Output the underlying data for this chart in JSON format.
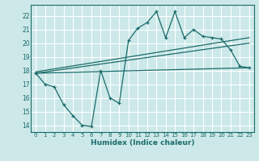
{
  "xlabel": "Humidex (Indice chaleur)",
  "bg_color": "#cce8e8",
  "line_color": "#1a6b6b",
  "grid_color": "#ffffff",
  "x_ticks": [
    0,
    1,
    2,
    3,
    4,
    5,
    6,
    7,
    8,
    9,
    10,
    11,
    12,
    13,
    14,
    15,
    16,
    17,
    18,
    19,
    20,
    21,
    22,
    23
  ],
  "y_ticks": [
    14,
    15,
    16,
    17,
    18,
    19,
    20,
    21,
    22
  ],
  "xlim": [
    -0.5,
    23.5
  ],
  "ylim": [
    13.5,
    22.8
  ],
  "line1_x": [
    0,
    1,
    2,
    3,
    4,
    5,
    6,
    7,
    8,
    9,
    10,
    11,
    12,
    13,
    14,
    15,
    16,
    17,
    18,
    19,
    20,
    21,
    22,
    23
  ],
  "line1_y": [
    17.8,
    17.0,
    16.8,
    15.5,
    14.7,
    14.0,
    13.9,
    18.0,
    16.0,
    15.6,
    20.2,
    21.1,
    21.5,
    22.3,
    20.4,
    22.3,
    20.4,
    21.0,
    20.5,
    20.4,
    20.3,
    19.5,
    18.3,
    18.2
  ],
  "line2_x": [
    0,
    23
  ],
  "line2_y": [
    17.8,
    18.2
  ],
  "line3_x": [
    0,
    23
  ],
  "line3_y": [
    17.8,
    20.0
  ],
  "line4_x": [
    0,
    23
  ],
  "line4_y": [
    17.9,
    20.4
  ]
}
